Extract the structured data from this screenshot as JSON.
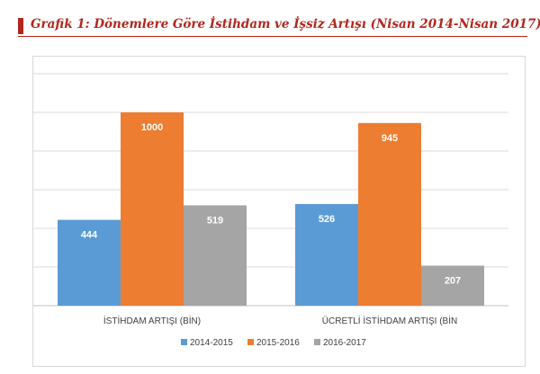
{
  "header": {
    "title": "Grafik 1: Dönemlere Göre İstihdam ve İşsiz Artışı (Nisan 2014-Nisan 2017)"
  },
  "colors": {
    "title": "#b3261e",
    "series": [
      "#5b9bd5",
      "#ed7d31",
      "#a5a5a5"
    ]
  },
  "chart_data": {
    "type": "bar",
    "title": "",
    "xlabel": "",
    "ylabel": "",
    "categories": [
      "İSTİHDAM ARTIŞI (BİN)",
      "ÜCRETLİ İSTİHDAM ARTIŞI (BİN"
    ],
    "series": [
      {
        "name": "2014-2015",
        "values": [
          444,
          526
        ]
      },
      {
        "name": "2015-2016",
        "values": [
          1000,
          945
        ]
      },
      {
        "name": "2016-2017",
        "values": [
          519,
          207
        ]
      }
    ],
    "ylim": [
      0,
      1200
    ],
    "gridlines": true,
    "legend": "bottom",
    "data_labels": true
  }
}
